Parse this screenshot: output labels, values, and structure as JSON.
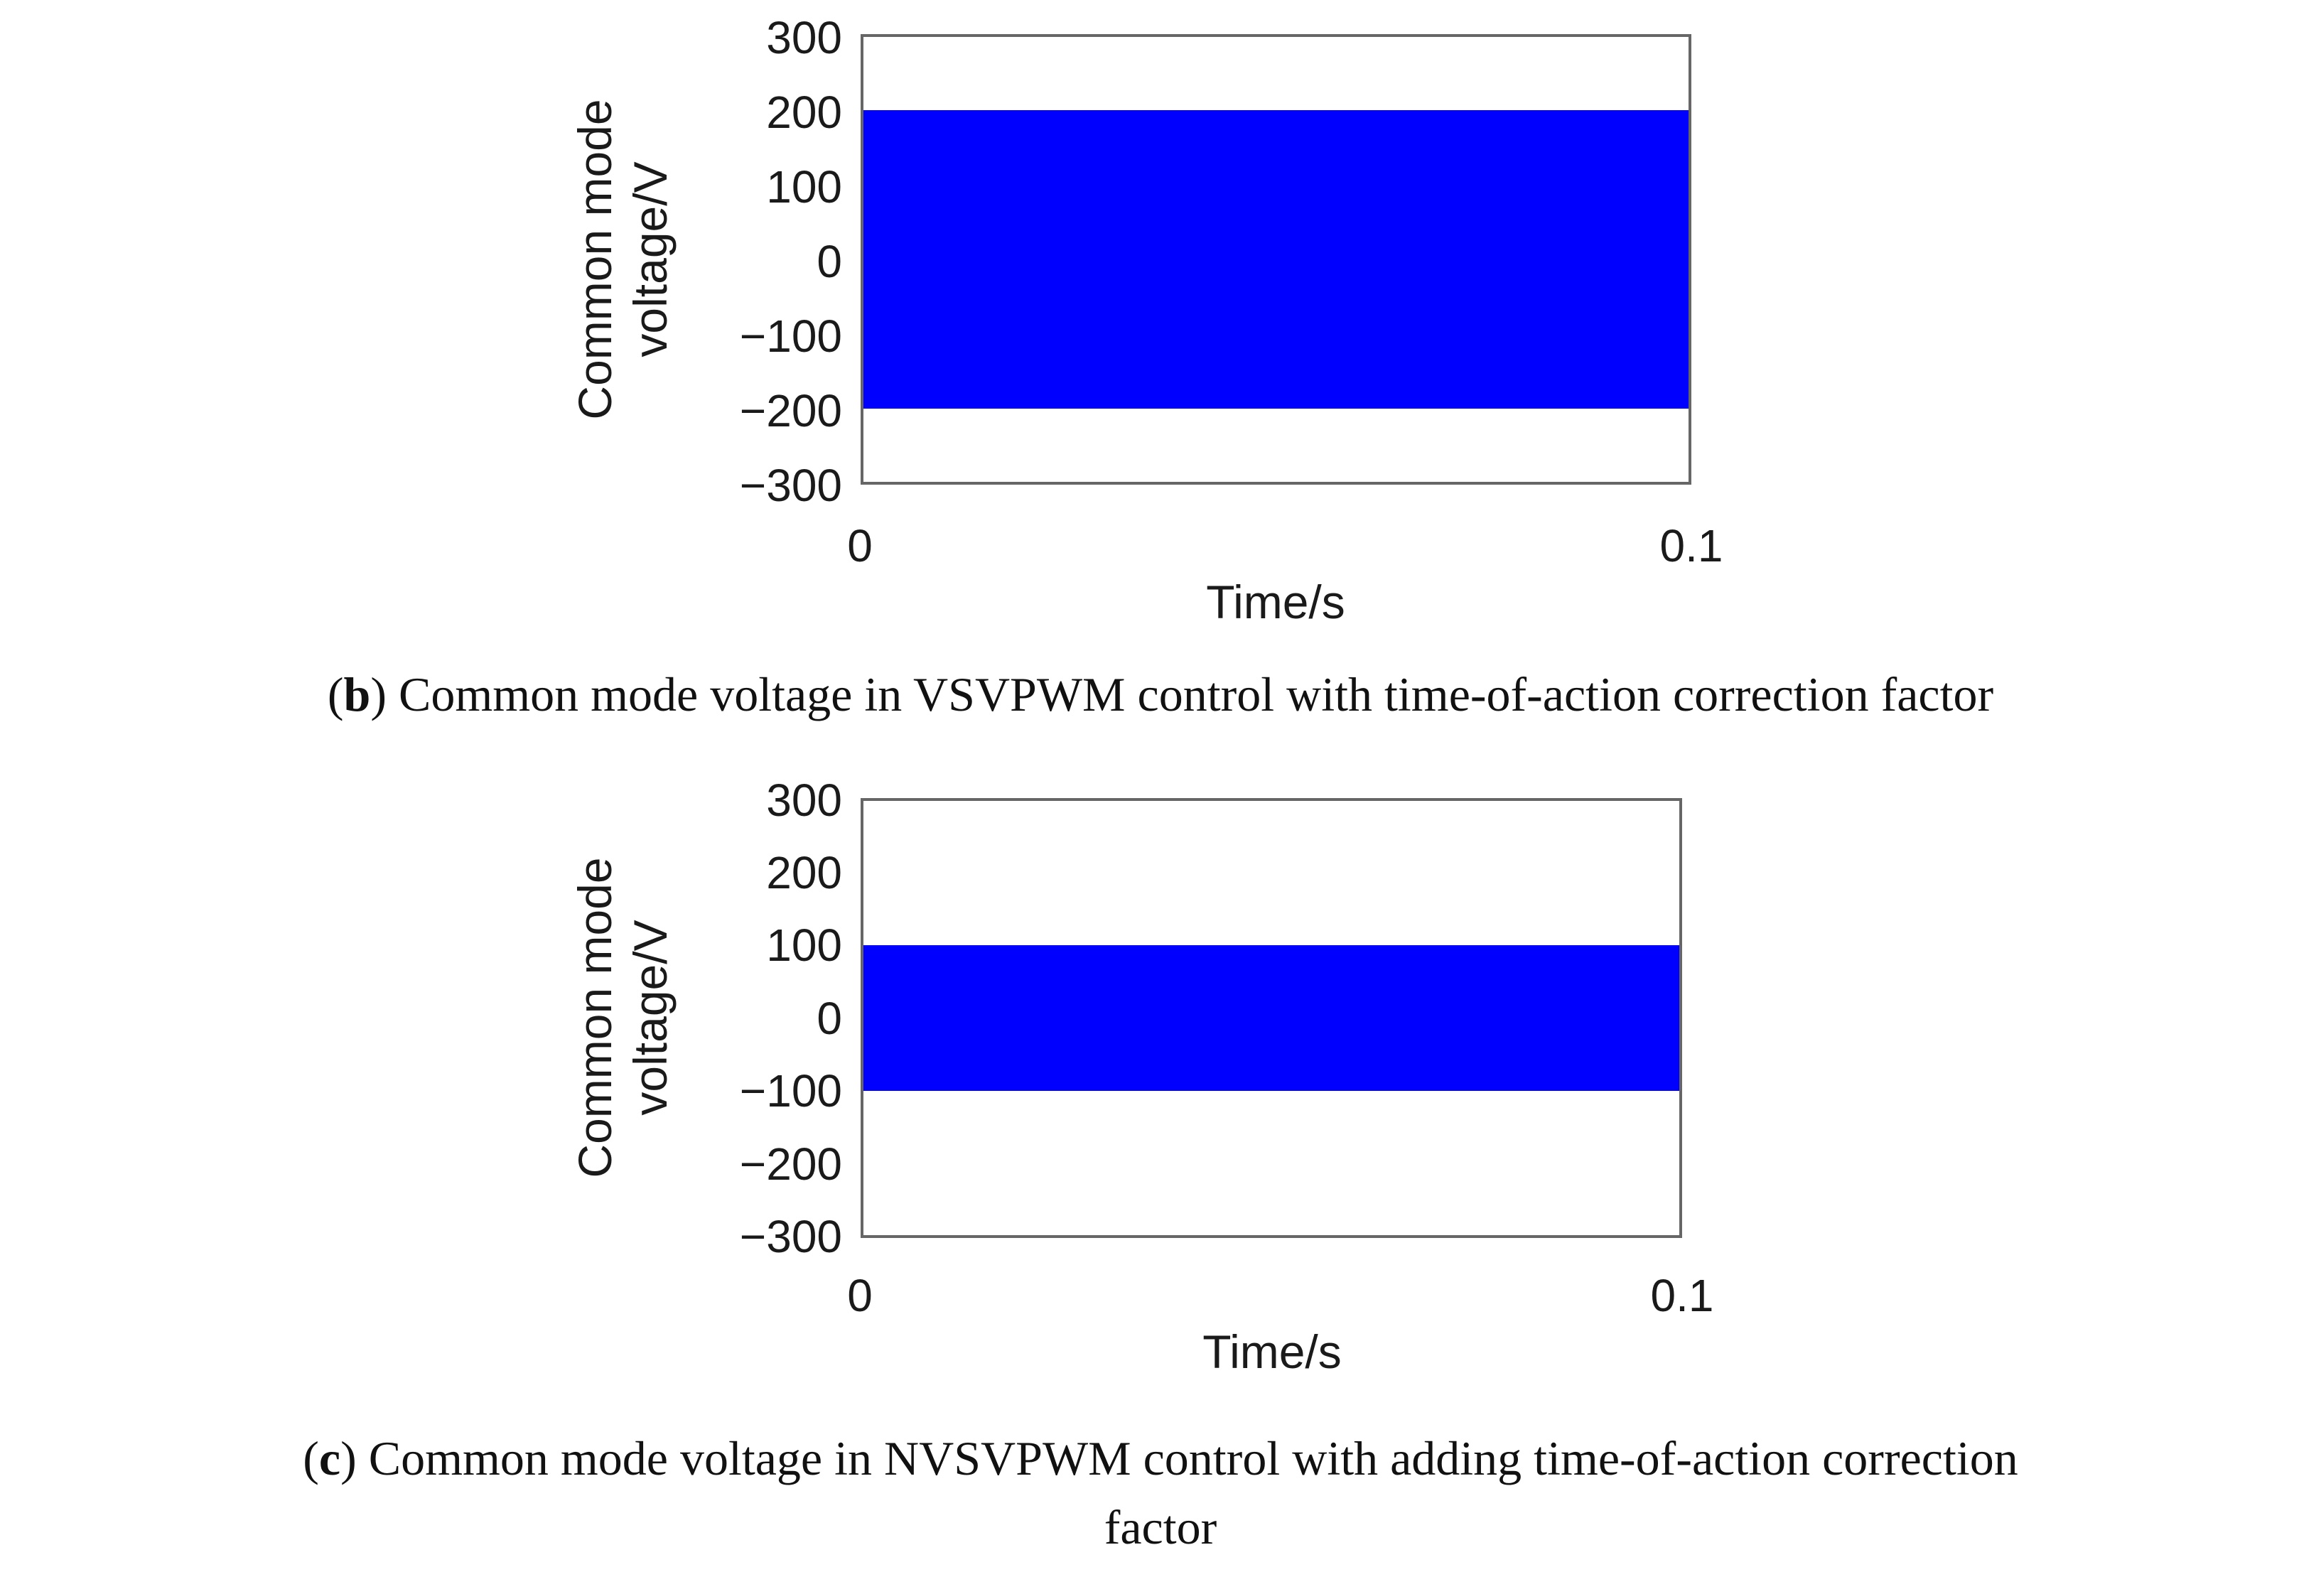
{
  "chart_data": [
    {
      "type": "area",
      "panel": "b",
      "xlabel": "Time/s",
      "ylabel_lines": [
        "Common mode",
        "voltage/V"
      ],
      "xlim": [
        0,
        0.1
      ],
      "ylim": [
        -300,
        300
      ],
      "xticks": [
        0,
        0.1
      ],
      "xtick_labels": [
        "0",
        "0.1"
      ],
      "yticks": [
        300,
        200,
        100,
        0,
        -100,
        -200,
        -300
      ],
      "ytick_labels": [
        "300",
        "200",
        "100",
        "0",
        "−100",
        "−200",
        "−300"
      ],
      "grid": false,
      "series": [
        {
          "x_range": [
            0,
            0.1
          ],
          "y_max": 200,
          "y_min": -200,
          "color": "#0000ff"
        }
      ],
      "caption": {
        "prefix": "(",
        "letter": "b",
        "text": ") Common mode voltage in VSVPWM control with time-of-action correction factor"
      }
    },
    {
      "type": "area",
      "panel": "c",
      "xlabel": "Time/s",
      "ylabel_lines": [
        "Common mode",
        "voltage/V"
      ],
      "xlim": [
        0,
        0.1
      ],
      "ylim": [
        -300,
        300
      ],
      "xticks": [
        0,
        0.1
      ],
      "xtick_labels": [
        "0",
        "0.1"
      ],
      "yticks": [
        300,
        200,
        100,
        0,
        -100,
        -200,
        -300
      ],
      "ytick_labels": [
        "300",
        "200",
        "100",
        "0",
        "−100",
        "−200",
        "−300"
      ],
      "grid": false,
      "series": [
        {
          "x_range": [
            0,
            0.1
          ],
          "y_max": 100,
          "y_min": -100,
          "color": "#0000ff"
        }
      ],
      "caption": {
        "prefix": "(",
        "letter": "c",
        "text": ") Common mode voltage in NVSVPWM control with adding time-of-action correction",
        "line2": "factor"
      }
    }
  ]
}
